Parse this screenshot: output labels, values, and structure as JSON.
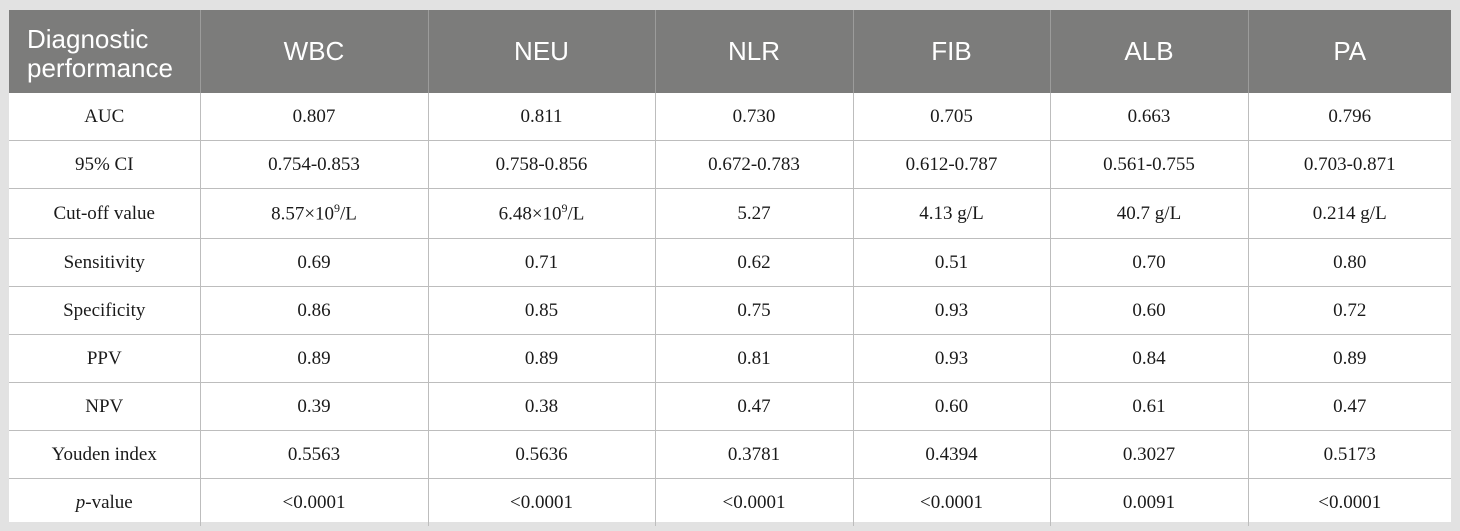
{
  "table": {
    "header": {
      "first_line1": "Diagnostic",
      "first_line2": "performance",
      "columns": [
        "WBC",
        "NEU",
        "NLR",
        "FIB",
        "ALB",
        "PA"
      ]
    },
    "rows": [
      {
        "label": "AUC",
        "values": [
          "0.807",
          "0.811",
          "0.730",
          "0.705",
          "0.663",
          "0.796"
        ]
      },
      {
        "label": "95% CI",
        "values": [
          "0.754-0.853",
          "0.758-0.856",
          "0.672-0.783",
          "0.612-0.787",
          "0.561-0.755",
          "0.703-0.871"
        ]
      },
      {
        "label": "Cut-off value",
        "values": [
          "",
          "",
          "5.27",
          "4.13 g/L",
          "40.7 g/L",
          "0.214 g/L"
        ]
      },
      {
        "label": "Sensitivity",
        "values": [
          "0.69",
          "0.71",
          "0.62",
          "0.51",
          "0.70",
          "0.80"
        ]
      },
      {
        "label": "Specificity",
        "values": [
          "0.86",
          "0.85",
          "0.75",
          "0.93",
          "0.60",
          "0.72"
        ]
      },
      {
        "label": "PPV",
        "values": [
          "0.89",
          "0.89",
          "0.81",
          "0.93",
          "0.84",
          "0.89"
        ]
      },
      {
        "label": "NPV",
        "values": [
          "0.39",
          "0.38",
          "0.47",
          "0.60",
          "0.61",
          "0.47"
        ]
      },
      {
        "label": "Youden index",
        "values": [
          "0.5563",
          "0.5636",
          "0.3781",
          "0.4394",
          "0.3027",
          "0.5173"
        ]
      },
      {
        "label_italic": "p",
        "label_rest": "-value",
        "values": [
          "<0.0001",
          "<0.0001",
          "<0.0001",
          "<0.0001",
          "0.0091",
          "<0.0001"
        ]
      }
    ],
    "cutoff_exp": {
      "wbc_base": "8.57×10",
      "wbc_exp": "9",
      "wbc_unit": "/L",
      "neu_base": "6.48×10",
      "neu_exp": "9",
      "neu_unit": "/L"
    }
  },
  "colors": {
    "header_bg": "#7c7c7b",
    "page_bg": "#e2e2e2",
    "grid": "#bdbdbd"
  }
}
